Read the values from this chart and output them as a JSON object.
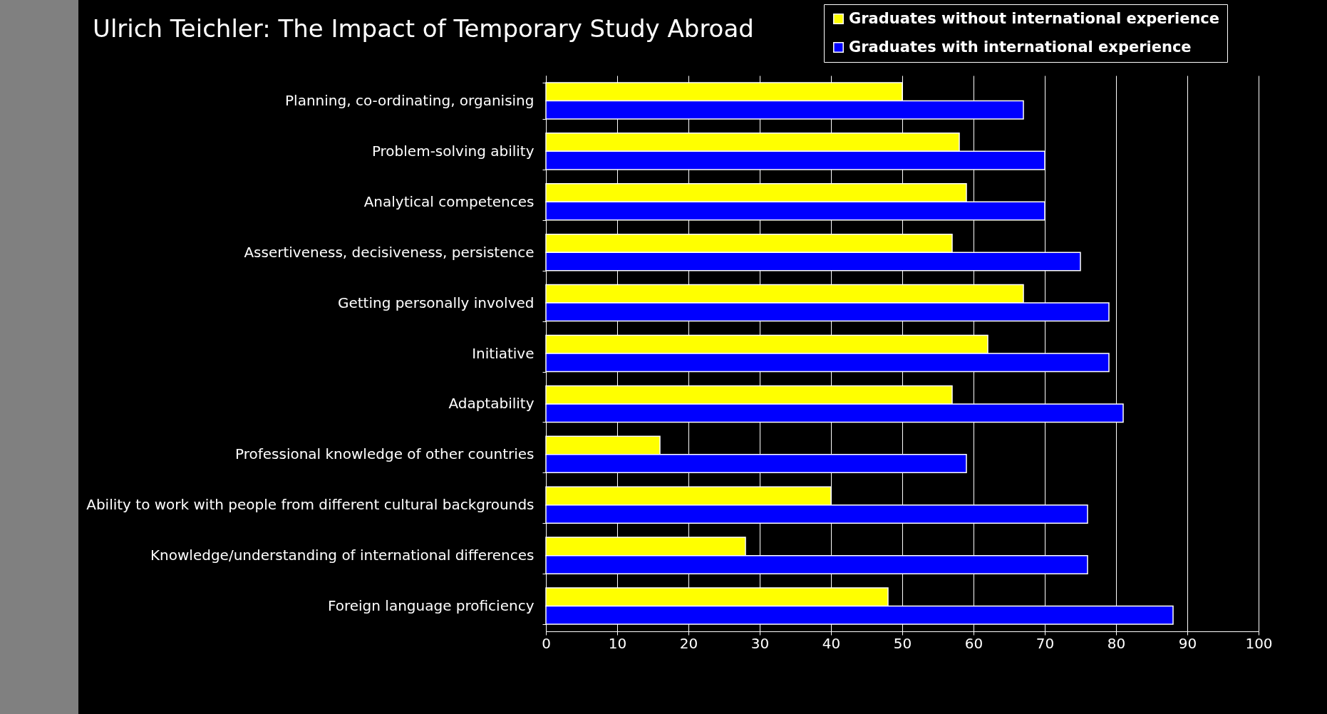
{
  "chart_data": {
    "type": "bar",
    "orientation": "horizontal",
    "categories": [
      "Planning, co-ordinating, organising",
      "Problem-solving ability",
      "Analytical competences",
      "Assertiveness, decisiveness, persistence",
      "Getting personally involved",
      "Initiative",
      "Adaptability",
      "Professional knowledge of other countries",
      "Ability to work with people from different cultural backgrounds",
      "Knowledge/understanding of international differences",
      "Foreign language proficiency"
    ],
    "series": [
      {
        "name": "Graduates without international experience",
        "color": "#ffff00",
        "values": [
          50,
          58,
          59,
          57,
          67,
          62,
          57,
          16,
          40,
          28,
          48
        ]
      },
      {
        "name": "Graduates with international experience",
        "color": "#0000ff",
        "values": [
          67,
          70,
          70,
          75,
          79,
          79,
          81,
          59,
          76,
          76,
          88
        ]
      }
    ],
    "xlim": [
      0,
      100
    ],
    "xticks": [
      0,
      10,
      20,
      30,
      40,
      50,
      60,
      70,
      80,
      90,
      100
    ],
    "grid": "x",
    "legend": "top right",
    "annotations": [
      "Ulrich Teichler: The Impact of Temporary Study Abroad"
    ]
  }
}
